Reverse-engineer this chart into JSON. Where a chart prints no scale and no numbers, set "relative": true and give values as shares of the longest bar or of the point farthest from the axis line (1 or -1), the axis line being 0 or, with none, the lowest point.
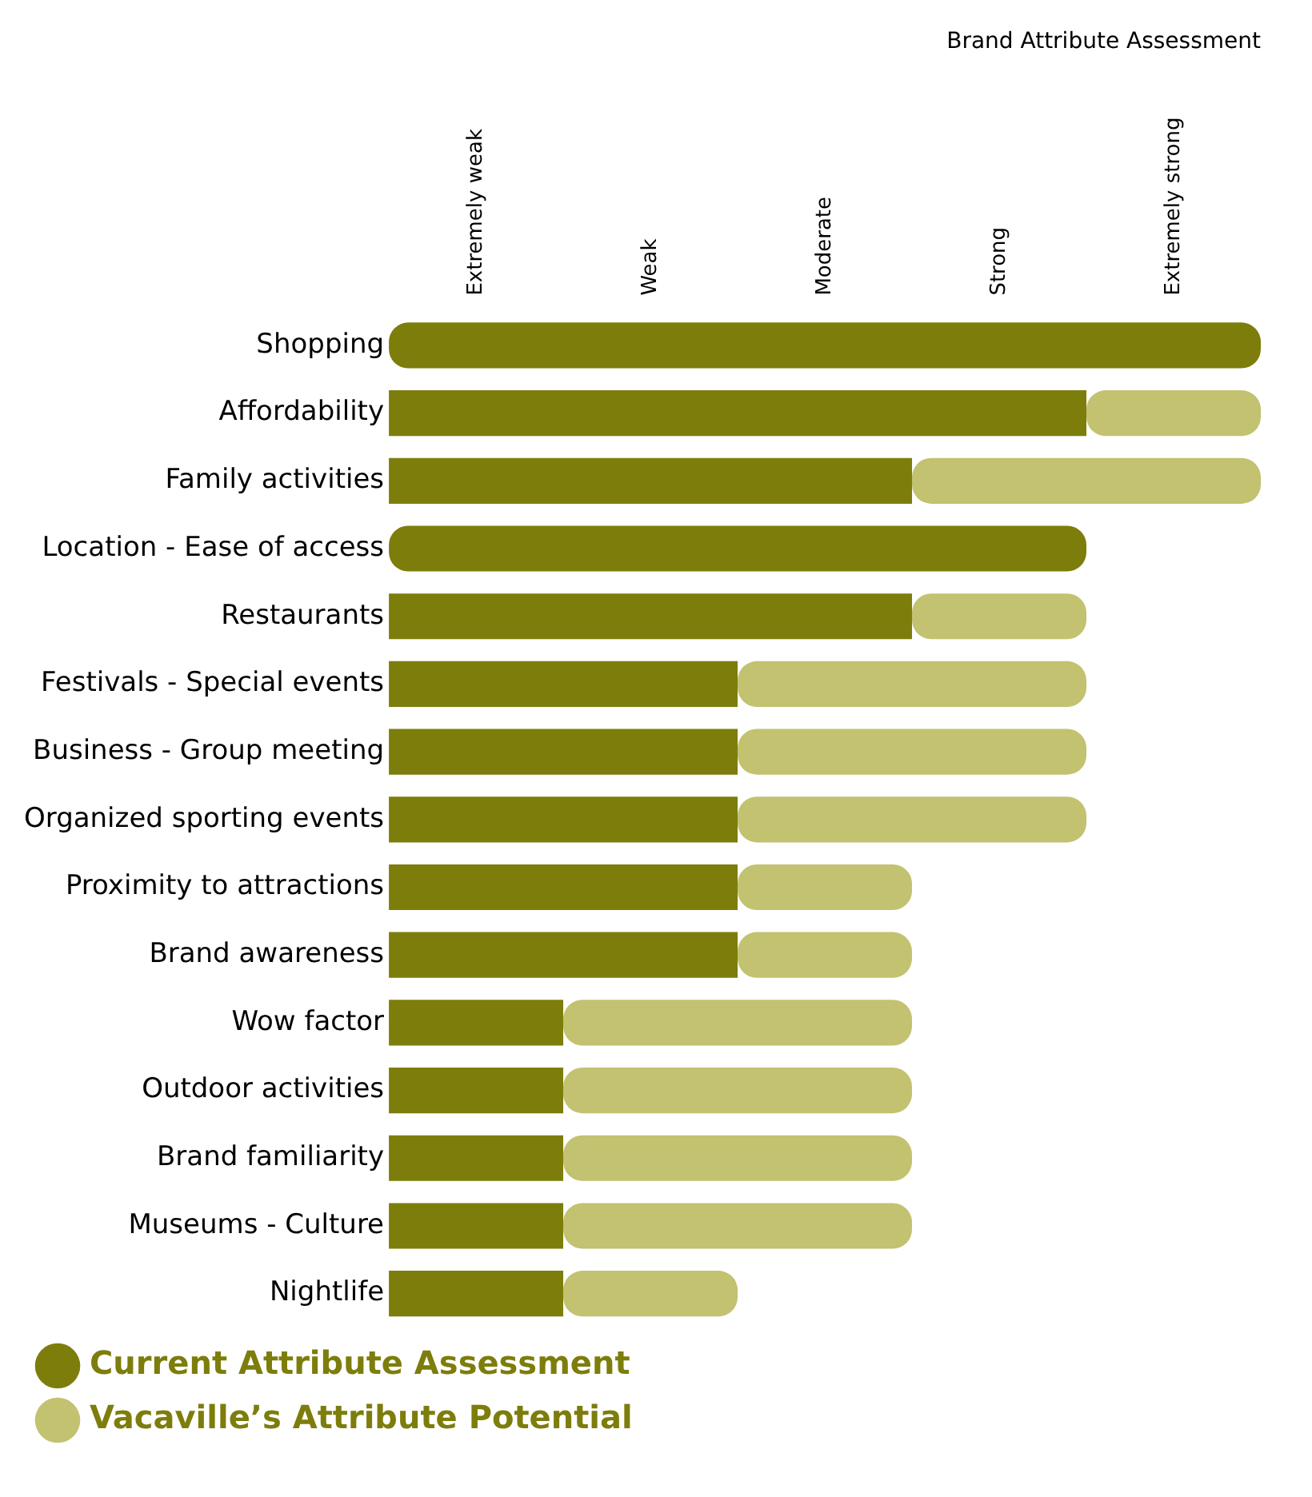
{
  "chart_data": {
    "type": "bar",
    "orientation": "horizontal",
    "stacked": true,
    "relative": true,
    "title": "Brand Attribute Assessment",
    "categories": [
      "Shopping",
      "Affordability",
      "Family activities",
      "Location - Ease of access",
      "Restaurants",
      "Festivals - Special events",
      "Business - Group meeting",
      "Organized sporting events",
      "Proximity to attractions",
      "Brand awareness",
      "Wow factor",
      "Outdoor activities",
      "Brand familiarity",
      "Museums - Culture",
      "Nightlife"
    ],
    "series": [
      {
        "name": "Current Attribute Assessment",
        "color": "#7d7d0c",
        "values": [
          1,
          0.8,
          0.6,
          0.8,
          0.6,
          0.4,
          0.4,
          0.4,
          0.4,
          0.4,
          0.2,
          0.2,
          0.2,
          0.2,
          0.2
        ]
      },
      {
        "name": "Vacaville’s Attribute Potential",
        "color": "#c2c270",
        "values": [
          0,
          0.2,
          0.4,
          0,
          0.2,
          0.4,
          0.4,
          0.4,
          0.2,
          0.2,
          0.4,
          0.4,
          0.4,
          0.4,
          0.2
        ]
      }
    ],
    "annotations": [
      "Extremely weak",
      "Weak",
      "Moderate",
      "Strong",
      "Extremely strong"
    ],
    "grid": false,
    "legend": "bottom"
  }
}
